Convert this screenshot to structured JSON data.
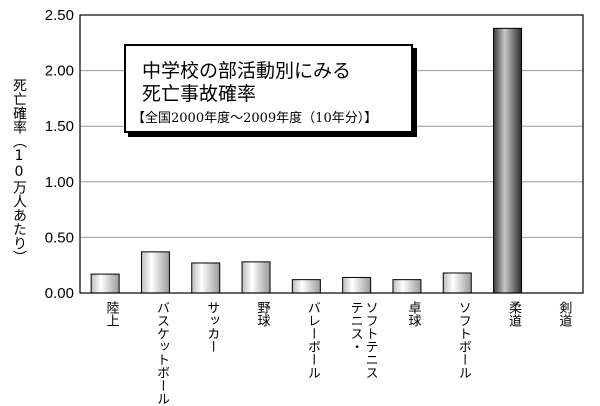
{
  "chart_data": {
    "type": "bar",
    "title": "中学校の部活動別にみる",
    "title_line2": "死亡事故確率",
    "subtitle": "【全国2000年度～2009年度（10年分）】",
    "ylabel": "死亡確率（10万人あたり）",
    "xlabel": "",
    "categories": [
      "陸上",
      "バスケットボール",
      "サッカー",
      "野球",
      "バレーボール",
      "テニス・\nソフトテニス",
      "卓球",
      "ソフトボール",
      "柔道",
      "剣道"
    ],
    "values": [
      0.17,
      0.37,
      0.27,
      0.28,
      0.12,
      0.14,
      0.12,
      0.18,
      2.38,
      0.0
    ],
    "ylim": [
      0,
      2.5
    ],
    "yticks": [
      "0.00",
      "0.50",
      "1.00",
      "1.50",
      "2.00",
      "2.50"
    ],
    "ytick_values": [
      0,
      0.5,
      1.0,
      1.5,
      2.0,
      2.5
    ],
    "grid": true,
    "bar_color": "#e8e8e8",
    "highlight_bar_color": "#8a8a8a"
  }
}
